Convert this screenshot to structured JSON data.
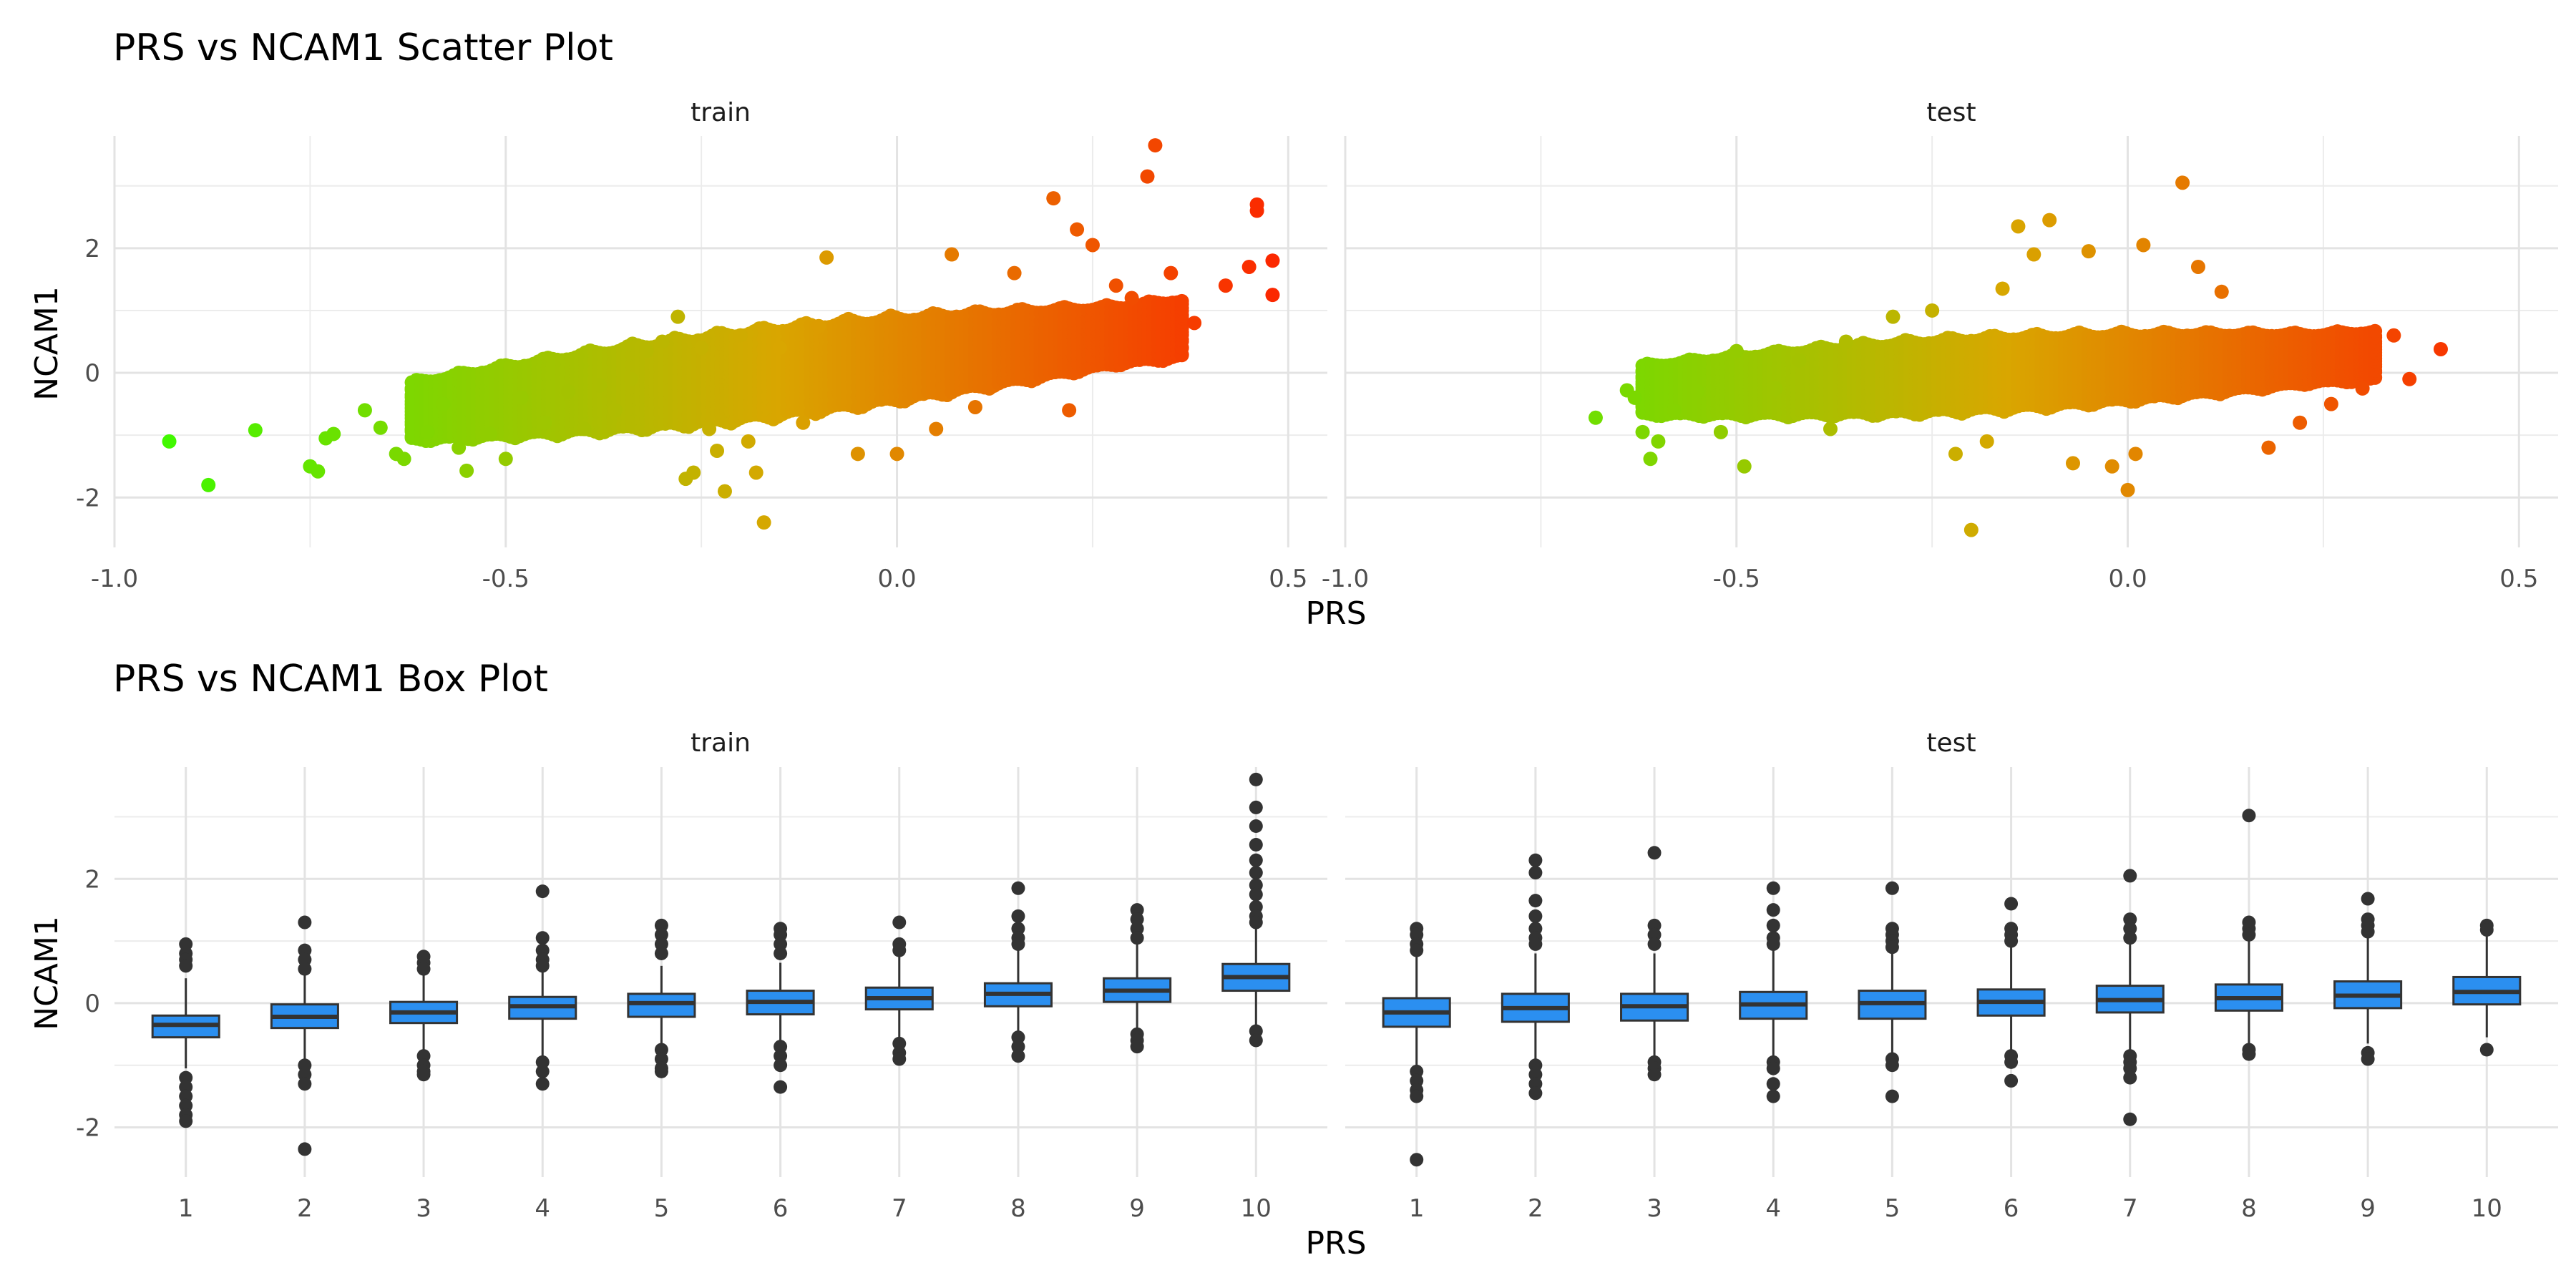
{
  "chart_data": [
    {
      "type": "scatter",
      "title": "PRS vs NCAM1 Scatter Plot",
      "xlabel": "PRS",
      "ylabel": "NCAM1",
      "xlim": [
        -1.0,
        0.55
      ],
      "ylim": [
        -2.8,
        3.8
      ],
      "x_ticks": [
        "-1.0",
        "-0.5",
        "0.0",
        "0.5"
      ],
      "x_tick_values": [
        -1.0,
        -0.5,
        0.0,
        0.5
      ],
      "y_ticks": [
        "-2",
        "0",
        "2"
      ],
      "y_tick_values": [
        -2,
        0,
        2
      ],
      "grid": true,
      "color_scale": {
        "low": "#33ff00",
        "mid": "#d9a600",
        "high": "#ff1a00",
        "by": "PRS"
      },
      "facets": [
        {
          "name": "train",
          "points": [
            [
              -0.93,
              -1.1
            ],
            [
              -0.88,
              -1.8
            ],
            [
              -0.82,
              -0.92
            ],
            [
              -0.75,
              -1.5
            ],
            [
              -0.74,
              -1.58
            ],
            [
              -0.73,
              -1.05
            ],
            [
              -0.72,
              -0.98
            ],
            [
              -0.68,
              -0.6
            ],
            [
              -0.66,
              -0.88
            ],
            [
              -0.64,
              -1.3
            ],
            [
              -0.63,
              -1.38
            ],
            [
              -0.6,
              -0.95
            ],
            [
              -0.58,
              -0.5
            ],
            [
              -0.56,
              -1.2
            ],
            [
              -0.55,
              -1.57
            ],
            [
              -0.52,
              -0.98
            ],
            [
              -0.5,
              -1.38
            ],
            [
              -0.48,
              -0.4
            ],
            [
              -0.45,
              -0.8
            ],
            [
              -0.42,
              -0.3
            ],
            [
              -0.4,
              -0.9
            ],
            [
              -0.38,
              -0.2
            ],
            [
              -0.36,
              -0.6
            ],
            [
              -0.34,
              -0.1
            ],
            [
              -0.32,
              0.35
            ],
            [
              -0.3,
              0.5
            ],
            [
              -0.28,
              0.9
            ],
            [
              -0.27,
              -1.7
            ],
            [
              -0.26,
              -1.6
            ],
            [
              -0.25,
              0.4
            ],
            [
              -0.24,
              -0.9
            ],
            [
              -0.23,
              -1.25
            ],
            [
              -0.22,
              -1.9
            ],
            [
              -0.2,
              0.6
            ],
            [
              -0.19,
              -1.1
            ],
            [
              -0.18,
              -1.6
            ],
            [
              -0.17,
              -2.4
            ],
            [
              -0.15,
              0.4
            ],
            [
              -0.12,
              -0.8
            ],
            [
              -0.1,
              0.75
            ],
            [
              -0.09,
              1.85
            ],
            [
              -0.05,
              -1.3
            ],
            [
              0.0,
              -1.3
            ],
            [
              0.05,
              -0.9
            ],
            [
              0.07,
              1.9
            ],
            [
              0.1,
              -0.55
            ],
            [
              0.15,
              1.6
            ],
            [
              0.2,
              2.8
            ],
            [
              0.22,
              -0.6
            ],
            [
              0.23,
              2.3
            ],
            [
              0.25,
              2.05
            ],
            [
              0.28,
              1.4
            ],
            [
              0.3,
              1.2
            ],
            [
              0.32,
              3.15
            ],
            [
              0.33,
              3.65
            ],
            [
              0.35,
              1.6
            ],
            [
              0.38,
              0.8
            ],
            [
              0.42,
              1.4
            ],
            [
              0.45,
              1.7
            ],
            [
              0.46,
              2.7
            ],
            [
              0.46,
              2.6
            ],
            [
              0.48,
              1.8
            ],
            [
              0.48,
              1.25
            ]
          ]
        },
        {
          "name": "test",
          "points": [
            [
              -0.68,
              -0.72
            ],
            [
              -0.64,
              -0.28
            ],
            [
              -0.63,
              -0.4
            ],
            [
              -0.62,
              -0.95
            ],
            [
              -0.61,
              -1.38
            ],
            [
              -0.6,
              -1.1
            ],
            [
              -0.58,
              -0.6
            ],
            [
              -0.55,
              -0.3
            ],
            [
              -0.52,
              -0.95
            ],
            [
              -0.5,
              0.35
            ],
            [
              -0.49,
              -1.5
            ],
            [
              -0.45,
              -0.25
            ],
            [
              -0.42,
              0.2
            ],
            [
              -0.38,
              -0.9
            ],
            [
              -0.36,
              0.5
            ],
            [
              -0.3,
              0.9
            ],
            [
              -0.25,
              1.0
            ],
            [
              -0.22,
              -1.3
            ],
            [
              -0.2,
              -2.52
            ],
            [
              -0.18,
              -1.1
            ],
            [
              -0.16,
              1.35
            ],
            [
              -0.14,
              2.35
            ],
            [
              -0.12,
              1.9
            ],
            [
              -0.1,
              2.45
            ],
            [
              -0.07,
              -1.45
            ],
            [
              -0.05,
              1.95
            ],
            [
              -0.02,
              -1.5
            ],
            [
              0.01,
              -1.3
            ],
            [
              0.02,
              2.05
            ],
            [
              0.0,
              -1.88
            ],
            [
              0.07,
              3.05
            ],
            [
              0.09,
              1.7
            ],
            [
              0.12,
              1.3
            ],
            [
              0.18,
              -1.2
            ],
            [
              0.22,
              -0.8
            ],
            [
              0.26,
              -0.5
            ],
            [
              0.3,
              -0.25
            ],
            [
              0.34,
              0.6
            ],
            [
              0.36,
              -0.1
            ],
            [
              0.4,
              0.38
            ]
          ]
        }
      ]
    },
    {
      "type": "box",
      "title": "PRS vs NCAM1 Box Plot",
      "xlabel": "PRS",
      "ylabel": "NCAM1",
      "categories": [
        "1",
        "2",
        "3",
        "4",
        "5",
        "6",
        "7",
        "8",
        "9",
        "10"
      ],
      "ylim": [
        -2.8,
        3.8
      ],
      "y_ticks": [
        "-2",
        "0",
        "2"
      ],
      "y_tick_values": [
        -2,
        0,
        2
      ],
      "grid": true,
      "box_color": "#2b8ff0",
      "facets": [
        {
          "name": "train",
          "boxes": [
            {
              "q1": -0.55,
              "median": -0.35,
              "q3": -0.2,
              "lo": -1.05,
              "hi": 0.4,
              "outliers": [
                0.95,
                0.8,
                0.7,
                0.6,
                -1.2,
                -1.35,
                -1.5,
                -1.65,
                -1.8,
                -1.9
              ]
            },
            {
              "q1": -0.4,
              "median": -0.22,
              "q3": -0.02,
              "lo": -0.9,
              "hi": 0.55,
              "outliers": [
                1.3,
                0.85,
                0.7,
                0.55,
                -1.0,
                -1.15,
                -1.3,
                -2.35
              ]
            },
            {
              "q1": -0.32,
              "median": -0.15,
              "q3": 0.02,
              "lo": -0.8,
              "hi": 0.45,
              "outliers": [
                0.75,
                0.65,
                0.55,
                -0.85,
                -1.0,
                -1.1,
                -1.15
              ]
            },
            {
              "q1": -0.25,
              "median": -0.05,
              "q3": 0.1,
              "lo": -0.85,
              "hi": 0.55,
              "outliers": [
                1.8,
                1.05,
                0.85,
                0.7,
                0.6,
                -0.95,
                -1.1,
                -1.3
              ]
            },
            {
              "q1": -0.22,
              "median": 0.0,
              "q3": 0.15,
              "lo": -0.7,
              "hi": 0.6,
              "outliers": [
                1.25,
                1.1,
                0.95,
                0.8,
                -0.75,
                -0.9,
                -1.05,
                -1.1
              ]
            },
            {
              "q1": -0.18,
              "median": 0.02,
              "q3": 0.2,
              "lo": -0.65,
              "hi": 0.65,
              "outliers": [
                1.2,
                1.1,
                0.95,
                0.8,
                -0.7,
                -0.85,
                -1.0,
                -1.35
              ]
            },
            {
              "q1": -0.1,
              "median": 0.08,
              "q3": 0.25,
              "lo": -0.6,
              "hi": 0.75,
              "outliers": [
                1.3,
                0.95,
                0.85,
                -0.65,
                -0.8,
                -0.9
              ]
            },
            {
              "q1": -0.05,
              "median": 0.15,
              "q3": 0.32,
              "lo": -0.55,
              "hi": 0.85,
              "outliers": [
                1.85,
                1.4,
                1.2,
                1.05,
                0.95,
                -0.55,
                -0.7,
                -0.85
              ]
            },
            {
              "q1": 0.02,
              "median": 0.2,
              "q3": 0.4,
              "lo": -0.5,
              "hi": 0.95,
              "outliers": [
                1.5,
                1.35,
                1.2,
                1.05,
                -0.5,
                -0.6,
                -0.7
              ]
            },
            {
              "q1": 0.2,
              "median": 0.42,
              "q3": 0.63,
              "lo": -0.35,
              "hi": 1.2,
              "outliers": [
                3.6,
                3.15,
                2.85,
                2.55,
                2.3,
                2.1,
                1.9,
                1.75,
                1.55,
                1.4,
                1.3,
                -0.45,
                -0.6
              ]
            }
          ]
        },
        {
          "name": "test",
          "boxes": [
            {
              "q1": -0.38,
              "median": -0.15,
              "q3": 0.08,
              "lo": -1.0,
              "hi": 0.75,
              "outliers": [
                1.2,
                1.1,
                0.95,
                0.85,
                -1.1,
                -1.25,
                -1.4,
                -1.5,
                -2.52
              ]
            },
            {
              "q1": -0.3,
              "median": -0.08,
              "q3": 0.15,
              "lo": -0.95,
              "hi": 0.8,
              "outliers": [
                2.3,
                2.1,
                1.65,
                1.4,
                1.2,
                1.05,
                0.95,
                -1.0,
                -1.15,
                -1.3,
                -1.45
              ]
            },
            {
              "q1": -0.28,
              "median": -0.05,
              "q3": 0.15,
              "lo": -0.9,
              "hi": 0.8,
              "outliers": [
                2.42,
                1.25,
                1.1,
                0.95,
                -0.95,
                -1.05,
                -1.15
              ]
            },
            {
              "q1": -0.25,
              "median": -0.02,
              "q3": 0.18,
              "lo": -0.85,
              "hi": 0.85,
              "outliers": [
                1.85,
                1.5,
                1.25,
                1.05,
                0.95,
                -0.95,
                -1.05,
                -1.3,
                -1.5
              ]
            },
            {
              "q1": -0.25,
              "median": 0.0,
              "q3": 0.2,
              "lo": -0.85,
              "hi": 0.85,
              "outliers": [
                1.85,
                1.2,
                1.1,
                1.0,
                0.9,
                -0.9,
                -1.0,
                -1.5
              ]
            },
            {
              "q1": -0.2,
              "median": 0.02,
              "q3": 0.22,
              "lo": -0.8,
              "hi": 0.9,
              "outliers": [
                1.6,
                1.2,
                1.1,
                1.0,
                -0.85,
                -0.95,
                -1.25
              ]
            },
            {
              "q1": -0.15,
              "median": 0.05,
              "q3": 0.28,
              "lo": -0.75,
              "hi": 0.95,
              "outliers": [
                2.05,
                1.35,
                1.2,
                1.05,
                -0.85,
                -0.95,
                -1.05,
                -1.2,
                -1.87
              ]
            },
            {
              "q1": -0.12,
              "median": 0.08,
              "q3": 0.3,
              "lo": -0.7,
              "hi": 1.0,
              "outliers": [
                3.02,
                1.3,
                1.2,
                1.1,
                -0.75,
                -0.82
              ]
            },
            {
              "q1": -0.08,
              "median": 0.12,
              "q3": 0.35,
              "lo": -0.65,
              "hi": 1.05,
              "outliers": [
                1.68,
                1.35,
                1.25,
                1.15,
                -0.8,
                -0.9
              ]
            },
            {
              "q1": -0.02,
              "median": 0.18,
              "q3": 0.42,
              "lo": -0.55,
              "hi": 1.1,
              "outliers": [
                1.25,
                1.18,
                -0.75
              ]
            }
          ]
        }
      ]
    }
  ]
}
